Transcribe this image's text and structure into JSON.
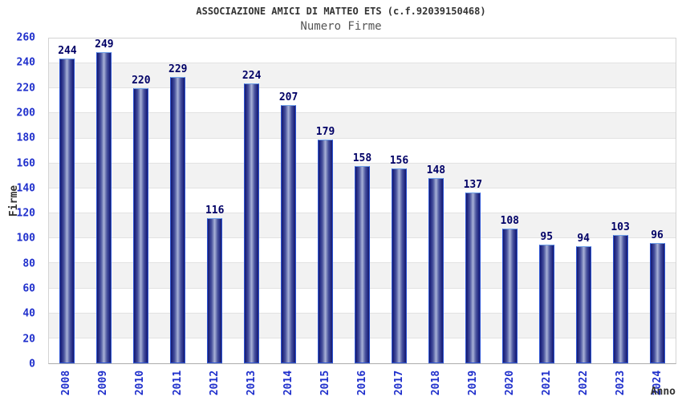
{
  "header": {
    "title": "ASSOCIAZIONE AMICI DI MATTEO ETS (c.f.92039150468)",
    "subtitle": "Numero Firme"
  },
  "chart_data": {
    "type": "bar",
    "title": "ASSOCIAZIONE AMICI DI MATTEO ETS (c.f.92039150468)",
    "subtitle": "Numero Firme",
    "xlabel": "Anno",
    "ylabel": "Firme",
    "categories": [
      "2008",
      "2009",
      "2010",
      "2011",
      "2012",
      "2013",
      "2014",
      "2015",
      "2016",
      "2017",
      "2018",
      "2019",
      "2020",
      "2021",
      "2022",
      "2023",
      "2024"
    ],
    "values": [
      244,
      249,
      220,
      229,
      116,
      224,
      207,
      179,
      158,
      156,
      148,
      137,
      108,
      95,
      94,
      103,
      96
    ],
    "ylim": [
      0,
      260
    ],
    "ytick_step": 20,
    "yticks": [
      0,
      20,
      40,
      60,
      80,
      100,
      120,
      140,
      160,
      180,
      200,
      220,
      240,
      260
    ],
    "grid": "horizontal-bands-alternating",
    "legend": "none",
    "colors": {
      "bar_dark": "#171b6b",
      "bar_light": "#aab2d9",
      "bar_border": "#2e55d4",
      "axis_tick_label": "#2030cc",
      "value_label": "#000066",
      "title": "#333333",
      "subtitle": "#555555",
      "band_gray": "#f2f2f2",
      "gridline": "#e2e2e2"
    }
  }
}
